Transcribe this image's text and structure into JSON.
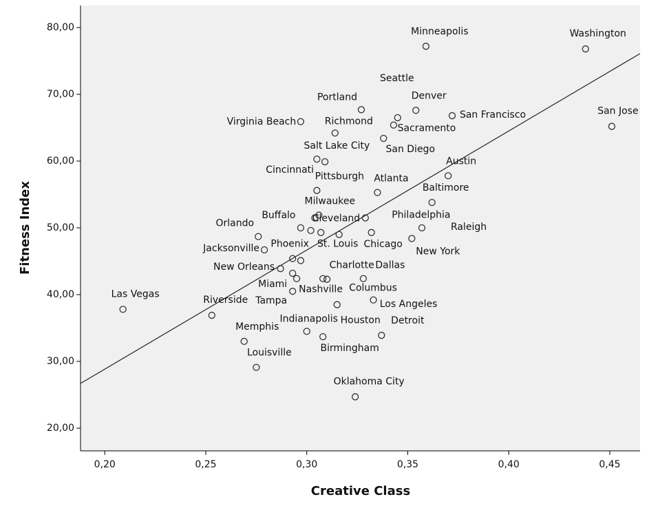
{
  "chart_data": {
    "type": "scatter",
    "x_label": "Creative Class",
    "y_label": "Fitness Index",
    "labels": [
      "Minneapolis",
      "Washington",
      "Seattle",
      "Portland",
      "Denver",
      "San Francisco",
      "San Jose",
      "Virginia Beach",
      "Richmond",
      "Sacramento",
      "Salt Lake City",
      "San Diego",
      "Cincinnati",
      "Pittsburgh",
      "Atlanta",
      "Austin",
      "Baltimore",
      "Milwaukee",
      "Buffalo",
      "Cleveland",
      "Philadelphia",
      "Orlando",
      "Raleigh",
      "New York",
      "Jacksonville",
      "Phoenix",
      "St. Louis",
      "Chicago",
      "New Orleans",
      "Miami",
      "Tampa",
      "Nashville",
      "Charlotte",
      "Columbus",
      "Dallas",
      "Los Angeles",
      "Houston",
      "Indianapolis",
      "Birmingham",
      "Detroit",
      "Memphis",
      "Louisville",
      "Oklahoma City",
      "Las Vegas",
      "Riverside",
      null,
      null,
      null
    ],
    "x": [
      0.359,
      0.438,
      0.345,
      0.327,
      0.354,
      0.372,
      0.451,
      0.297,
      0.314,
      0.343,
      0.305,
      0.338,
      0.309,
      0.305,
      0.335,
      0.37,
      0.362,
      0.306,
      0.297,
      0.304,
      0.329,
      0.276,
      0.357,
      0.352,
      0.279,
      0.293,
      0.316,
      0.332,
      0.287,
      0.293,
      0.293,
      0.295,
      0.308,
      0.31,
      0.328,
      0.333,
      0.315,
      0.3,
      0.308,
      0.337,
      0.269,
      0.275,
      0.324,
      0.209,
      0.253,
      0.302,
      0.307,
      0.297
    ],
    "y": [
      77.2,
      76.8,
      66.5,
      67.7,
      67.6,
      66.8,
      65.2,
      65.9,
      64.2,
      65.4,
      60.3,
      63.4,
      59.9,
      55.6,
      55.3,
      57.8,
      53.8,
      51.9,
      50.0,
      51.5,
      51.5,
      48.7,
      50.0,
      48.4,
      46.7,
      45.4,
      49.0,
      49.3,
      43.9,
      43.2,
      40.5,
      42.4,
      42.4,
      42.3,
      42.4,
      39.2,
      38.5,
      34.5,
      33.7,
      33.9,
      33.0,
      29.1,
      24.7,
      37.8,
      36.9,
      49.6,
      49.3,
      45.1
    ],
    "trend_line": {
      "x": [
        0.188,
        0.465
      ],
      "y": [
        26.7,
        76.1
      ]
    },
    "xlim": [
      0.188,
      0.465
    ],
    "ylim": [
      16.6,
      83.3
    ],
    "xticks": [
      {
        "value": 0.2,
        "label": "0,20"
      },
      {
        "value": 0.25,
        "label": "0,25"
      },
      {
        "value": 0.3,
        "label": "0,30"
      },
      {
        "value": 0.35,
        "label": "0,35"
      },
      {
        "value": 0.4,
        "label": "0,40"
      },
      {
        "value": 0.45,
        "label": "0,45"
      }
    ],
    "yticks": [
      {
        "value": 20,
        "label": "20,00"
      },
      {
        "value": 30,
        "label": "30,00"
      },
      {
        "value": 40,
        "label": "40,00"
      },
      {
        "value": 50,
        "label": "50,00"
      },
      {
        "value": 60,
        "label": "60,00"
      },
      {
        "value": 70,
        "label": "70,00"
      },
      {
        "value": 80,
        "label": "80,00"
      }
    ],
    "color": "#333333",
    "background": "#f0f0f0"
  }
}
